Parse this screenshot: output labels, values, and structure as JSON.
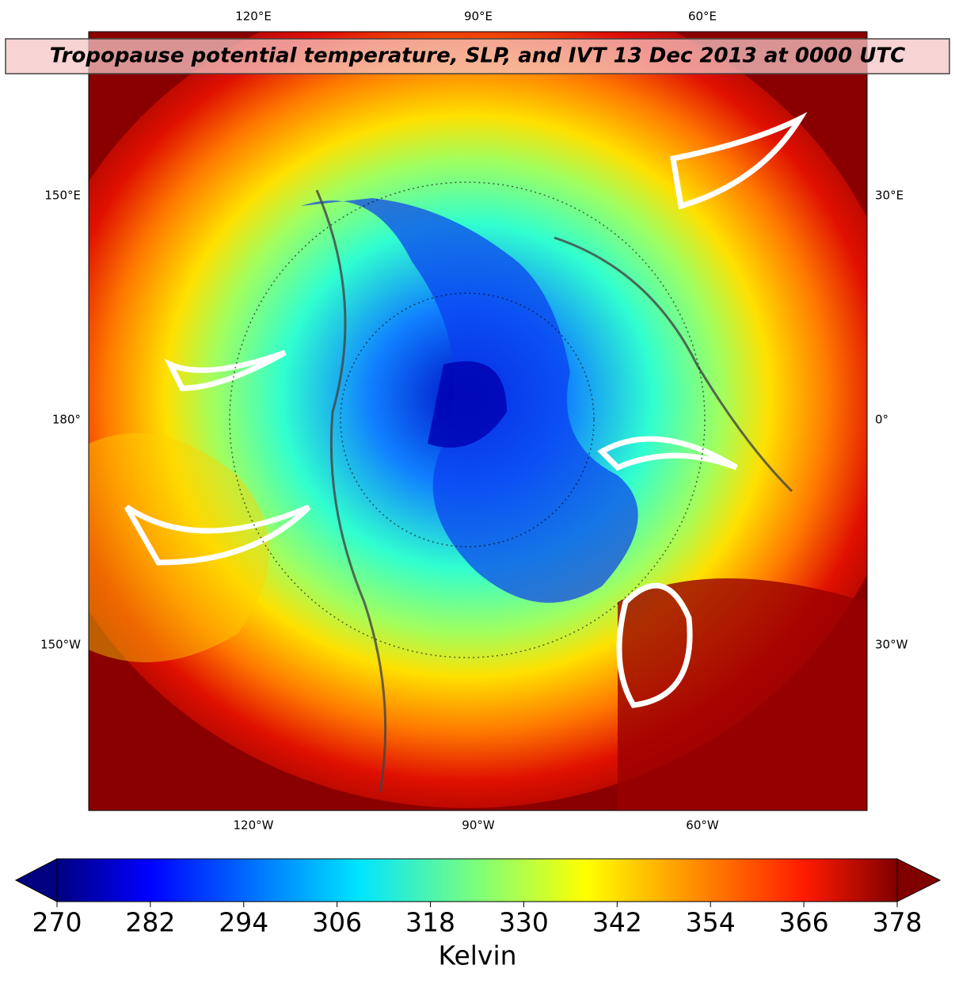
{
  "title": "Tropopause potential temperature, SLP, and IVT 13 Dec 2013 at 0000 UTC",
  "map": {
    "top_labels": [
      "120°E",
      "90°E",
      "60°E"
    ],
    "bottom_labels": [
      "120°W",
      "90°W",
      "60°W"
    ],
    "left_labels": [
      "150°E",
      "180°",
      "150°W"
    ],
    "right_labels": [
      "30°E",
      "0°",
      "30°W"
    ]
  },
  "colorbar": {
    "label": "Kelvin",
    "lim": [
      270,
      378
    ],
    "ticks": [
      270,
      282,
      294,
      306,
      318,
      330,
      342,
      354,
      366,
      378
    ],
    "colormap": "jet"
  }
}
